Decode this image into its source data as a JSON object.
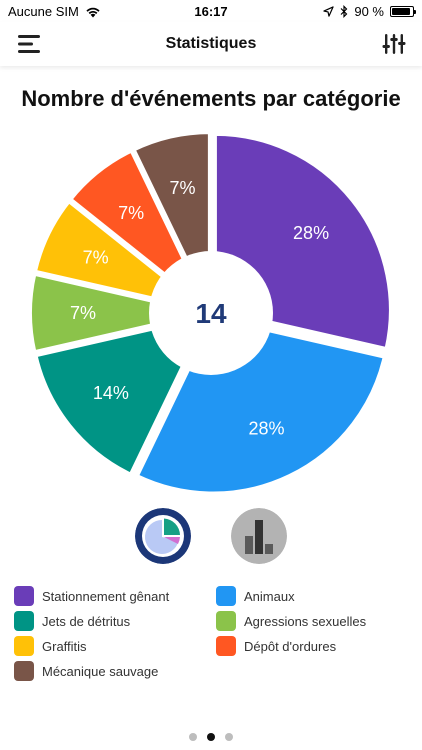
{
  "status_bar": {
    "carrier": "Aucune SIM",
    "time": "16:17",
    "battery": "90 %",
    "battery_level": 0.9
  },
  "nav": {
    "title": "Statistiques",
    "menu_icon": "hamburger-menu-icon",
    "filter_icon": "sliders-filter-icon"
  },
  "chart_data": {
    "type": "pie",
    "title": "Nombre d'événements par catégorie",
    "total_label": "14",
    "slices": [
      {
        "name": "Stationnement gênant",
        "value": 28,
        "label": "28%",
        "color": "#6a3db8"
      },
      {
        "name": "Animaux",
        "value": 28,
        "label": "28%",
        "color": "#2196f3"
      },
      {
        "name": "Jets de détritus",
        "value": 14,
        "label": "14%",
        "color": "#009485"
      },
      {
        "name": "Agressions sexuelles",
        "value": 7,
        "label": "7%",
        "color": "#8bc34a"
      },
      {
        "name": "Graffitis",
        "value": 7,
        "label": "7%",
        "color": "#ffc107"
      },
      {
        "name": "Dépôt d'ordures",
        "value": 7,
        "label": "7%",
        "color": "#ff5722"
      },
      {
        "name": "Mécanique sauvage",
        "value": 7,
        "label": "7%",
        "color": "#795548"
      }
    ],
    "draw_order": [
      0,
      1,
      2,
      3,
      4,
      5,
      6
    ]
  },
  "legend": [
    {
      "label": "Stationnement gênant",
      "color": "#6a3db8"
    },
    {
      "label": "Animaux",
      "color": "#2196f3"
    },
    {
      "label": "Jets de détritus",
      "color": "#009485"
    },
    {
      "label": "Agressions sexuelles",
      "color": "#8bc34a"
    },
    {
      "label": "Graffitis",
      "color": "#ffc107"
    },
    {
      "label": "Dépôt d'ordures",
      "color": "#ff5722"
    },
    {
      "label": "Mécanique sauvage",
      "color": "#795548"
    }
  ],
  "view_toggle": {
    "pie_icon": "pie-chart-icon",
    "bar_icon": "bar-chart-icon",
    "active": "pie"
  },
  "pager": {
    "count": 3,
    "active_index": 1
  }
}
